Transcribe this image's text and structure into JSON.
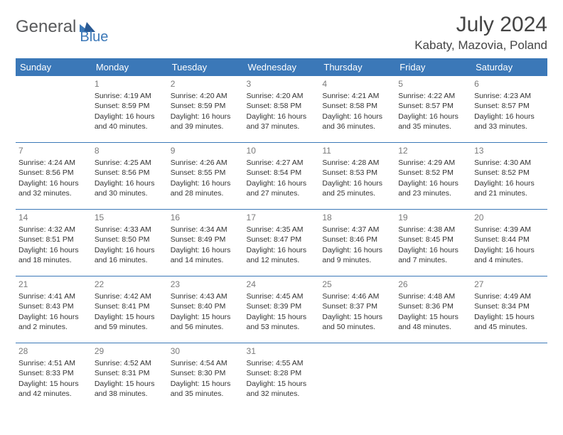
{
  "logo": {
    "text1": "General",
    "text2": "Blue"
  },
  "title": "July 2024",
  "location": "Kabaty, Mazovia, Poland",
  "weekdays": [
    "Sunday",
    "Monday",
    "Tuesday",
    "Wednesday",
    "Thursday",
    "Friday",
    "Saturday"
  ],
  "colors": {
    "header_bg": "#3b78b8",
    "header_text": "#ffffff",
    "rule": "#3b78b8",
    "logo_gray": "#58595b",
    "logo_blue": "#3b78b8"
  },
  "weeks": [
    [
      {
        "day": "",
        "sunrise": "",
        "sunset": "",
        "daylight": ""
      },
      {
        "day": "1",
        "sunrise": "Sunrise: 4:19 AM",
        "sunset": "Sunset: 8:59 PM",
        "daylight": "Daylight: 16 hours and 40 minutes."
      },
      {
        "day": "2",
        "sunrise": "Sunrise: 4:20 AM",
        "sunset": "Sunset: 8:59 PM",
        "daylight": "Daylight: 16 hours and 39 minutes."
      },
      {
        "day": "3",
        "sunrise": "Sunrise: 4:20 AM",
        "sunset": "Sunset: 8:58 PM",
        "daylight": "Daylight: 16 hours and 37 minutes."
      },
      {
        "day": "4",
        "sunrise": "Sunrise: 4:21 AM",
        "sunset": "Sunset: 8:58 PM",
        "daylight": "Daylight: 16 hours and 36 minutes."
      },
      {
        "day": "5",
        "sunrise": "Sunrise: 4:22 AM",
        "sunset": "Sunset: 8:57 PM",
        "daylight": "Daylight: 16 hours and 35 minutes."
      },
      {
        "day": "6",
        "sunrise": "Sunrise: 4:23 AM",
        "sunset": "Sunset: 8:57 PM",
        "daylight": "Daylight: 16 hours and 33 minutes."
      }
    ],
    [
      {
        "day": "7",
        "sunrise": "Sunrise: 4:24 AM",
        "sunset": "Sunset: 8:56 PM",
        "daylight": "Daylight: 16 hours and 32 minutes."
      },
      {
        "day": "8",
        "sunrise": "Sunrise: 4:25 AM",
        "sunset": "Sunset: 8:56 PM",
        "daylight": "Daylight: 16 hours and 30 minutes."
      },
      {
        "day": "9",
        "sunrise": "Sunrise: 4:26 AM",
        "sunset": "Sunset: 8:55 PM",
        "daylight": "Daylight: 16 hours and 28 minutes."
      },
      {
        "day": "10",
        "sunrise": "Sunrise: 4:27 AM",
        "sunset": "Sunset: 8:54 PM",
        "daylight": "Daylight: 16 hours and 27 minutes."
      },
      {
        "day": "11",
        "sunrise": "Sunrise: 4:28 AM",
        "sunset": "Sunset: 8:53 PM",
        "daylight": "Daylight: 16 hours and 25 minutes."
      },
      {
        "day": "12",
        "sunrise": "Sunrise: 4:29 AM",
        "sunset": "Sunset: 8:52 PM",
        "daylight": "Daylight: 16 hours and 23 minutes."
      },
      {
        "day": "13",
        "sunrise": "Sunrise: 4:30 AM",
        "sunset": "Sunset: 8:52 PM",
        "daylight": "Daylight: 16 hours and 21 minutes."
      }
    ],
    [
      {
        "day": "14",
        "sunrise": "Sunrise: 4:32 AM",
        "sunset": "Sunset: 8:51 PM",
        "daylight": "Daylight: 16 hours and 18 minutes."
      },
      {
        "day": "15",
        "sunrise": "Sunrise: 4:33 AM",
        "sunset": "Sunset: 8:50 PM",
        "daylight": "Daylight: 16 hours and 16 minutes."
      },
      {
        "day": "16",
        "sunrise": "Sunrise: 4:34 AM",
        "sunset": "Sunset: 8:49 PM",
        "daylight": "Daylight: 16 hours and 14 minutes."
      },
      {
        "day": "17",
        "sunrise": "Sunrise: 4:35 AM",
        "sunset": "Sunset: 8:47 PM",
        "daylight": "Daylight: 16 hours and 12 minutes."
      },
      {
        "day": "18",
        "sunrise": "Sunrise: 4:37 AM",
        "sunset": "Sunset: 8:46 PM",
        "daylight": "Daylight: 16 hours and 9 minutes."
      },
      {
        "day": "19",
        "sunrise": "Sunrise: 4:38 AM",
        "sunset": "Sunset: 8:45 PM",
        "daylight": "Daylight: 16 hours and 7 minutes."
      },
      {
        "day": "20",
        "sunrise": "Sunrise: 4:39 AM",
        "sunset": "Sunset: 8:44 PM",
        "daylight": "Daylight: 16 hours and 4 minutes."
      }
    ],
    [
      {
        "day": "21",
        "sunrise": "Sunrise: 4:41 AM",
        "sunset": "Sunset: 8:43 PM",
        "daylight": "Daylight: 16 hours and 2 minutes."
      },
      {
        "day": "22",
        "sunrise": "Sunrise: 4:42 AM",
        "sunset": "Sunset: 8:41 PM",
        "daylight": "Daylight: 15 hours and 59 minutes."
      },
      {
        "day": "23",
        "sunrise": "Sunrise: 4:43 AM",
        "sunset": "Sunset: 8:40 PM",
        "daylight": "Daylight: 15 hours and 56 minutes."
      },
      {
        "day": "24",
        "sunrise": "Sunrise: 4:45 AM",
        "sunset": "Sunset: 8:39 PM",
        "daylight": "Daylight: 15 hours and 53 minutes."
      },
      {
        "day": "25",
        "sunrise": "Sunrise: 4:46 AM",
        "sunset": "Sunset: 8:37 PM",
        "daylight": "Daylight: 15 hours and 50 minutes."
      },
      {
        "day": "26",
        "sunrise": "Sunrise: 4:48 AM",
        "sunset": "Sunset: 8:36 PM",
        "daylight": "Daylight: 15 hours and 48 minutes."
      },
      {
        "day": "27",
        "sunrise": "Sunrise: 4:49 AM",
        "sunset": "Sunset: 8:34 PM",
        "daylight": "Daylight: 15 hours and 45 minutes."
      }
    ],
    [
      {
        "day": "28",
        "sunrise": "Sunrise: 4:51 AM",
        "sunset": "Sunset: 8:33 PM",
        "daylight": "Daylight: 15 hours and 42 minutes."
      },
      {
        "day": "29",
        "sunrise": "Sunrise: 4:52 AM",
        "sunset": "Sunset: 8:31 PM",
        "daylight": "Daylight: 15 hours and 38 minutes."
      },
      {
        "day": "30",
        "sunrise": "Sunrise: 4:54 AM",
        "sunset": "Sunset: 8:30 PM",
        "daylight": "Daylight: 15 hours and 35 minutes."
      },
      {
        "day": "31",
        "sunrise": "Sunrise: 4:55 AM",
        "sunset": "Sunset: 8:28 PM",
        "daylight": "Daylight: 15 hours and 32 minutes."
      },
      {
        "day": "",
        "sunrise": "",
        "sunset": "",
        "daylight": ""
      },
      {
        "day": "",
        "sunrise": "",
        "sunset": "",
        "daylight": ""
      },
      {
        "day": "",
        "sunrise": "",
        "sunset": "",
        "daylight": ""
      }
    ]
  ]
}
